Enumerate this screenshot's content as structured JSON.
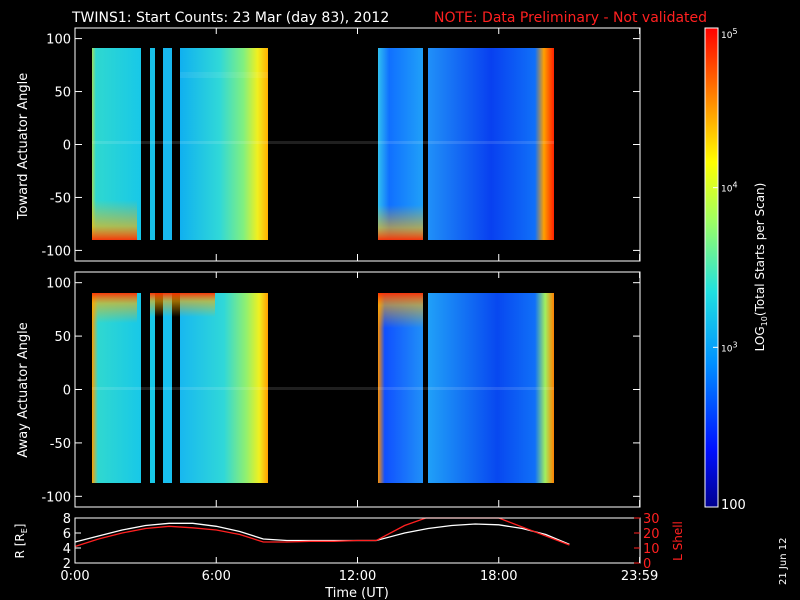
{
  "header": {
    "title": "TWINS1: Start Counts: 23 Mar (day  83), 2012",
    "note": "NOTE: Data Preliminary - Not validated",
    "note_color": "#ff2020"
  },
  "footer": {
    "date_stamp": "21 Jun 12"
  },
  "colors": {
    "axis": "#ffffff",
    "orbit_r": "#ffffff",
    "orbit_l": "#ff2020"
  },
  "chart_data": [
    {
      "type": "heatmap",
      "ylabel": "Toward Actuator Angle",
      "ylim": [
        -110,
        110
      ],
      "yticks": [
        -100,
        -50,
        0,
        50,
        100
      ],
      "xlim_hours": [
        0,
        24
      ],
      "data_x_ranges_hours": [
        [
          0.08,
          2.2
        ],
        [
          2.45,
          2.62
        ],
        [
          2.9,
          3.25
        ],
        [
          3.55,
          8.0
        ],
        [
          12.75,
          14.7
        ],
        [
          14.95,
          21.1
        ]
      ],
      "data_y_range": [
        -90,
        90
      ],
      "gaps_hours": [
        [
          2.2,
          2.45
        ],
        [
          2.62,
          2.9
        ],
        [
          3.25,
          3.55
        ],
        [
          8.0,
          12.75
        ],
        [
          14.7,
          14.95
        ]
      ]
    },
    {
      "type": "heatmap",
      "ylabel": "Away Actuator Angle",
      "ylim": [
        -110,
        110
      ],
      "yticks": [
        -100,
        -50,
        0,
        50,
        100
      ],
      "xlim_hours": [
        0,
        24
      ],
      "data_x_ranges_hours": [
        [
          0.08,
          2.2
        ],
        [
          2.45,
          2.62
        ],
        [
          2.9,
          3.25
        ],
        [
          3.55,
          8.0
        ],
        [
          12.75,
          14.7
        ],
        [
          14.95,
          21.1
        ]
      ],
      "data_y_range": [
        -90,
        90
      ],
      "gaps_hours": [
        [
          2.2,
          2.45
        ],
        [
          2.62,
          2.9
        ],
        [
          3.25,
          3.55
        ],
        [
          8.0,
          12.75
        ],
        [
          14.7,
          14.95
        ]
      ]
    },
    {
      "type": "line",
      "ylabel": "R [R",
      "ylabel_sub": "E",
      "ylabel_end": "]",
      "ylabel_right": "L Shell",
      "ylim": [
        2,
        8
      ],
      "yticks": [
        2,
        4,
        6,
        8
      ],
      "ylim_right": [
        0,
        30
      ],
      "yticks_right": [
        0,
        10,
        20,
        30
      ],
      "xlabel": "Time (UT)",
      "xticks": [
        "0:00",
        "6:00",
        "12:00",
        "18:00",
        "23:59"
      ],
      "xtick_hours": [
        0,
        6,
        12,
        18,
        23.983
      ],
      "series": [
        {
          "key": "R",
          "x": [
            0,
            1,
            2,
            3,
            4,
            5,
            6,
            7,
            8,
            9,
            10,
            11,
            12,
            12.8,
            14,
            15,
            16,
            17,
            18,
            19,
            20,
            21
          ],
          "values": [
            4.8,
            5.6,
            6.4,
            7.0,
            7.3,
            7.3,
            6.9,
            6.2,
            5.2,
            5.0,
            5.0,
            5.0,
            5.0,
            5.0,
            6.0,
            6.6,
            7.0,
            7.2,
            7.1,
            6.6,
            5.8,
            4.5
          ]
        },
        {
          "key": "L",
          "axis": "right",
          "x": [
            0,
            1,
            2,
            3,
            4,
            5,
            6,
            7,
            8,
            9,
            10,
            11,
            12,
            12.8,
            14.0,
            14.9,
            18.0,
            21.0
          ],
          "values": [
            11,
            16,
            20,
            23,
            24.5,
            23.5,
            22,
            19,
            14,
            14,
            14.5,
            14.5,
            15,
            15,
            25,
            30,
            30,
            12
          ]
        }
      ]
    }
  ],
  "colorbar": {
    "label": "LOG",
    "label_sub": "10",
    "label_end": "(Total Starts per Scan)",
    "min": 100,
    "max": 100000,
    "scale": "log",
    "ticks": [
      {
        "value": 100,
        "base": "100",
        "exp": ""
      },
      {
        "value": 1000,
        "base": "10",
        "exp": "3"
      },
      {
        "value": 10000,
        "base": "10",
        "exp": "4"
      },
      {
        "value": 100000,
        "base": "10",
        "exp": "5"
      }
    ]
  }
}
